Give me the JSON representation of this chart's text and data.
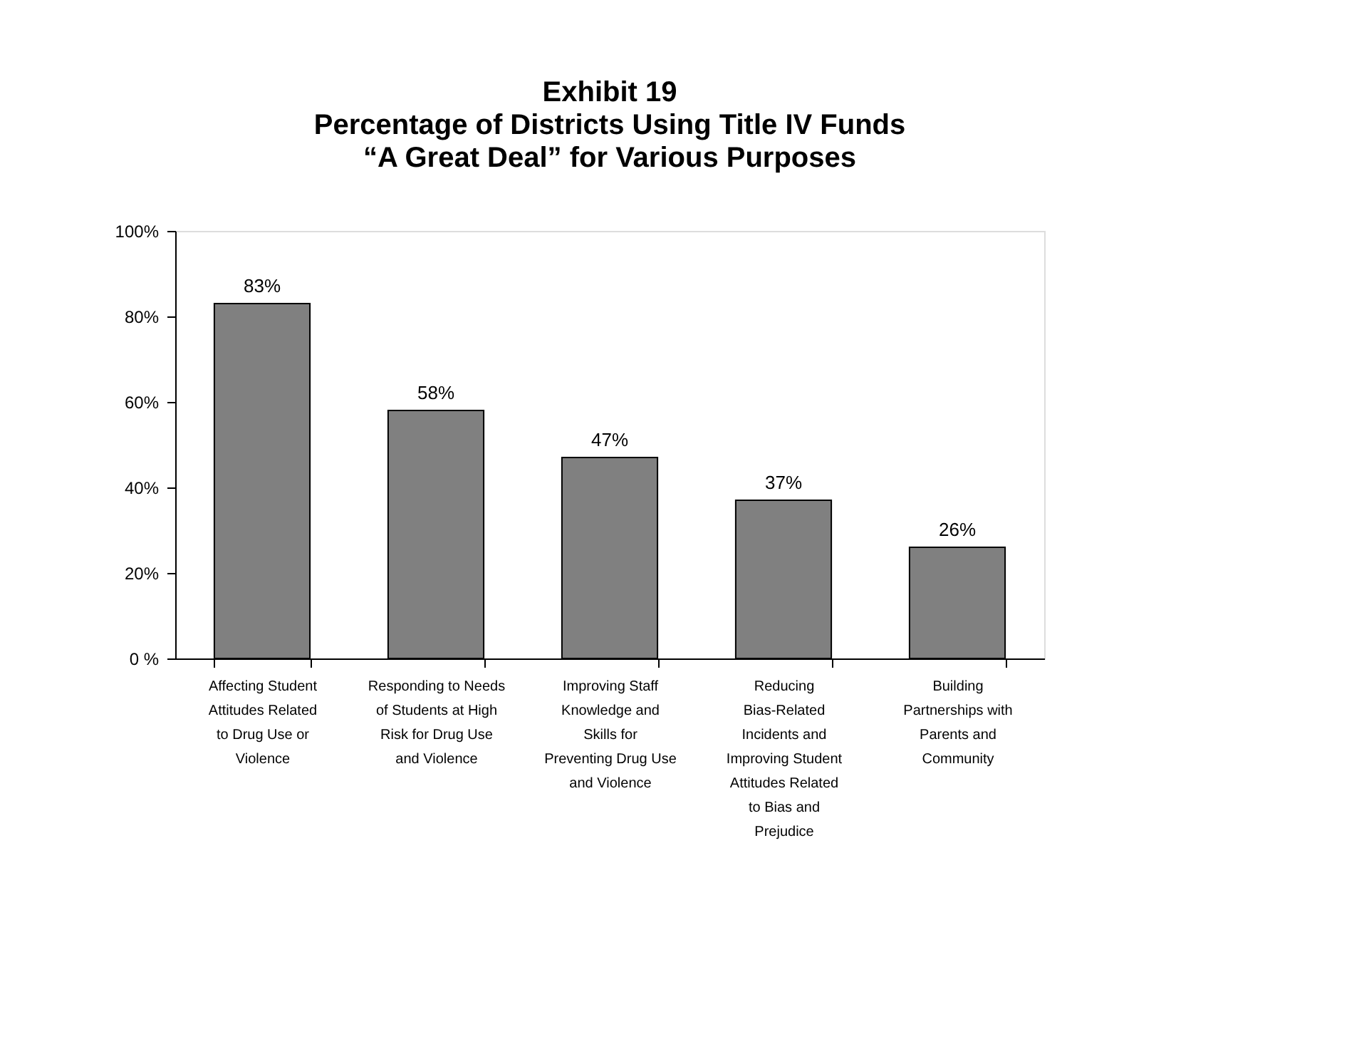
{
  "chart_data": {
    "type": "bar",
    "title": [
      "Exhibit 19",
      "Percentage of Districts Using Title IV Funds",
      "“A Great Deal” for Various Purposes"
    ],
    "categories": [
      "Affecting Student Attitudes Related to Drug Use or Violence",
      "Responding to Needs of Students at High Risk for Drug Use and Violence",
      "Improving Staff Knowledge and Skills for Preventing Drug Use and Violence",
      "Reducing Bias-Related Incidents and Improving Student Attitudes Related to Bias and Prejudice",
      "Building Partnerships with Parents and Community"
    ],
    "values": [
      83,
      58,
      47,
      37,
      26
    ],
    "value_labels": [
      "83%",
      "58%",
      "47%",
      "37%",
      "26%"
    ],
    "color": "#808080",
    "ylim": [
      0,
      100
    ],
    "yticks": [
      {
        "value": 0,
        "label": "0 %"
      },
      {
        "value": 20,
        "label": "20%"
      },
      {
        "value": 40,
        "label": "40%"
      },
      {
        "value": 60,
        "label": "60%"
      },
      {
        "value": 80,
        "label": "80%"
      },
      {
        "value": 100,
        "label": "100%"
      }
    ],
    "grid": false
  }
}
